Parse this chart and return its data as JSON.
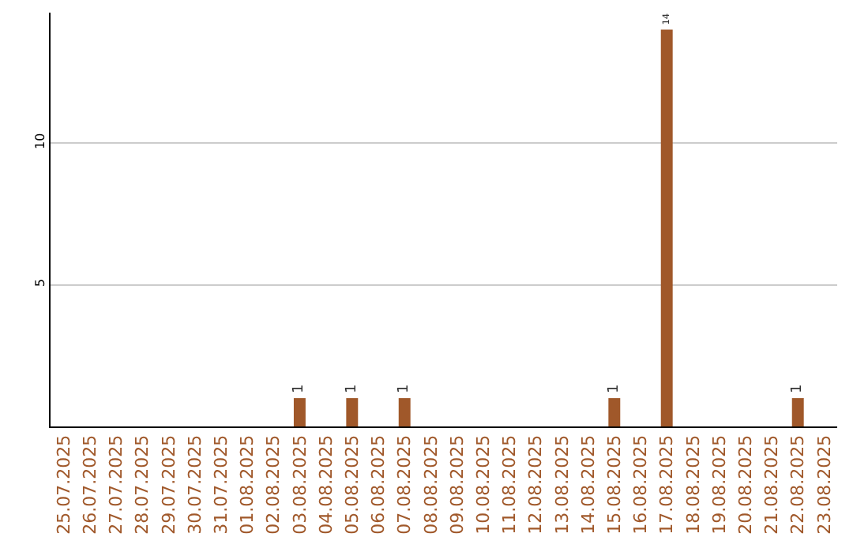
{
  "chart_data": {
    "type": "bar",
    "categories": [
      "25.07.2025",
      "26.07.2025",
      "27.07.2025",
      "28.07.2025",
      "29.07.2025",
      "30.07.2025",
      "31.07.2025",
      "01.08.2025",
      "02.08.2025",
      "03.08.2025",
      "04.08.2025",
      "05.08.2025",
      "06.08.2025",
      "07.08.2025",
      "08.08.2025",
      "09.08.2025",
      "10.08.2025",
      "11.08.2025",
      "12.08.2025",
      "13.08.2025",
      "14.08.2025",
      "15.08.2025",
      "16.08.2025",
      "17.08.2025",
      "18.08.2025",
      "19.08.2025",
      "20.08.2025",
      "21.08.2025",
      "22.08.2025",
      "23.08.2025"
    ],
    "values": [
      0,
      0,
      0,
      0,
      0,
      0,
      0,
      0,
      0,
      1,
      0,
      1,
      0,
      1,
      0,
      0,
      0,
      0,
      0,
      0,
      0,
      1,
      0,
      14,
      0,
      0,
      0,
      0,
      1,
      0
    ],
    "value_labels": [
      null,
      null,
      null,
      null,
      null,
      null,
      null,
      null,
      null,
      "1",
      null,
      "1",
      null,
      "1",
      null,
      null,
      null,
      null,
      null,
      null,
      null,
      "1",
      null,
      "14",
      null,
      null,
      null,
      null,
      "1",
      null
    ],
    "color": "#a0582a",
    "ylim": [
      0,
      14.6
    ],
    "yticks": [
      5,
      10
    ],
    "grid": "y"
  }
}
